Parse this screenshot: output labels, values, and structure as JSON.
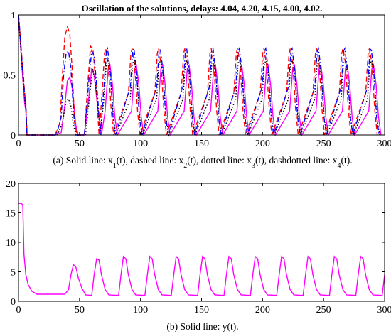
{
  "figure_title": "Oscillation of the solutions, delays: 4.04, 4.20, 4.15, 4.00, 4.02.",
  "chart_data": [
    {
      "type": "line",
      "caption": [
        {
          "t": "(a) Solid line: x"
        },
        {
          "t": "1",
          "sub": true
        },
        {
          "t": "(t), dashed line: x"
        },
        {
          "t": "2",
          "sub": true
        },
        {
          "t": "(t), dotted line: x"
        },
        {
          "t": "3",
          "sub": true
        },
        {
          "t": "(t), dashdotted line: x"
        },
        {
          "t": "4",
          "sub": true
        },
        {
          "t": "(t)."
        }
      ],
      "xlim": [
        0,
        300
      ],
      "ylim": [
        0,
        1
      ],
      "xticks": [
        0,
        50,
        100,
        150,
        200,
        250,
        300
      ],
      "yticks": [
        0,
        0.5,
        1
      ],
      "ytick_labels": [
        "0",
        "0.5",
        "1"
      ],
      "grid": false,
      "period_after_transient": 21.6,
      "series": [
        {
          "style": "solid",
          "color": "#ff00ff",
          "points": [
            [
              0,
              1.0
            ],
            [
              1,
              0.85
            ],
            [
              2,
              0.7
            ],
            [
              3,
              0.55
            ],
            [
              4,
              0.4
            ],
            [
              5,
              0.27
            ],
            [
              6,
              0.2
            ],
            [
              7,
              0.0
            ],
            [
              30,
              0.0
            ],
            [
              35,
              0.02
            ],
            [
              38,
              0.25
            ],
            [
              40,
              0.45
            ],
            [
              42,
              0.48
            ],
            [
              44,
              0.4
            ],
            [
              47,
              0.08
            ],
            [
              49,
              0.0
            ],
            [
              54,
              0.0
            ],
            [
              58,
              0.35
            ],
            [
              60,
              0.56
            ],
            [
              62,
              0.5
            ],
            [
              65,
              0.22
            ],
            [
              68,
              0.0
            ]
          ],
          "cycle": [
            [
              0,
              0.0
            ],
            [
              3,
              0.2
            ],
            [
              5.5,
              0.55
            ],
            [
              7,
              0.58
            ],
            [
              9,
              0.42
            ],
            [
              11,
              0.15
            ],
            [
              13,
              0.0
            ]
          ]
        },
        {
          "style": "dashed",
          "color": "#ff0000",
          "points": [
            [
              0,
              1.0
            ],
            [
              1,
              0.88
            ],
            [
              2,
              0.75
            ],
            [
              3,
              0.62
            ],
            [
              4,
              0.5
            ],
            [
              5,
              0.35
            ],
            [
              6,
              0.27
            ],
            [
              7,
              0.0
            ],
            [
              30,
              0.0
            ],
            [
              34,
              0.1
            ],
            [
              36,
              0.5
            ],
            [
              38,
              0.82
            ],
            [
              40,
              0.9
            ],
            [
              42,
              0.85
            ],
            [
              44,
              0.55
            ],
            [
              46,
              0.1
            ],
            [
              48,
              0.0
            ],
            [
              54,
              0.0
            ],
            [
              57,
              0.45
            ],
            [
              59,
              0.74
            ],
            [
              61,
              0.72
            ],
            [
              64,
              0.35
            ],
            [
              66,
              0.0
            ]
          ],
          "cycle": [
            [
              0,
              0.0
            ],
            [
              2.5,
              0.35
            ],
            [
              4.5,
              0.68
            ],
            [
              5.5,
              0.72
            ],
            [
              7.5,
              0.6
            ],
            [
              10,
              0.2
            ],
            [
              12,
              0.0
            ]
          ]
        },
        {
          "style": "dotted",
          "color": "#000000",
          "points": [
            [
              0,
              1.0
            ],
            [
              1,
              0.85
            ],
            [
              2,
              0.7
            ],
            [
              3,
              0.55
            ],
            [
              4,
              0.42
            ],
            [
              5,
              0.3
            ],
            [
              6,
              0.22
            ],
            [
              7,
              0.0
            ],
            [
              32,
              0.0
            ],
            [
              36,
              0.1
            ],
            [
              39,
              0.28
            ],
            [
              41,
              0.3
            ],
            [
              43,
              0.24
            ],
            [
              45,
              0.08
            ],
            [
              47,
              0.0
            ],
            [
              55,
              0.0
            ],
            [
              59,
              0.4
            ],
            [
              61,
              0.55
            ],
            [
              64,
              0.35
            ],
            [
              67,
              0.0
            ]
          ],
          "cycle": [
            [
              0,
              0.0
            ],
            [
              3,
              0.3
            ],
            [
              5,
              0.6
            ],
            [
              6.5,
              0.62
            ],
            [
              8.5,
              0.48
            ],
            [
              11,
              0.12
            ],
            [
              13,
              0.0
            ]
          ]
        },
        {
          "style": "dashdot",
          "color": "#0000ff",
          "points": [
            [
              0,
              1.0
            ],
            [
              1,
              0.88
            ],
            [
              2,
              0.74
            ],
            [
              3,
              0.6
            ],
            [
              4,
              0.47
            ],
            [
              5,
              0.33
            ],
            [
              6,
              0.25
            ],
            [
              7,
              0.0
            ],
            [
              31,
              0.0
            ],
            [
              35,
              0.15
            ],
            [
              37,
              0.5
            ],
            [
              39,
              0.68
            ],
            [
              41,
              0.7
            ],
            [
              43,
              0.55
            ],
            [
              45,
              0.2
            ],
            [
              47,
              0.0
            ],
            [
              54,
              0.0
            ],
            [
              58,
              0.5
            ],
            [
              60,
              0.7
            ],
            [
              62,
              0.66
            ],
            [
              65,
              0.3
            ],
            [
              67,
              0.0
            ]
          ],
          "cycle": [
            [
              0,
              0.0
            ],
            [
              3,
              0.4
            ],
            [
              5,
              0.7
            ],
            [
              6,
              0.72
            ],
            [
              8,
              0.55
            ],
            [
              10.5,
              0.15
            ],
            [
              12.5,
              0.0
            ]
          ]
        }
      ]
    },
    {
      "type": "line",
      "caption": [
        {
          "t": "(b) Solid line: y(t)."
        }
      ],
      "xlim": [
        0,
        300
      ],
      "ylim": [
        0,
        20
      ],
      "xticks": [
        0,
        50,
        100,
        150,
        200,
        250,
        300
      ],
      "yticks": [
        0,
        5,
        10,
        15,
        20
      ],
      "ytick_labels": [
        "0",
        "5",
        "10",
        "15",
        "20"
      ],
      "grid": false,
      "period_after_transient": 21.6,
      "series": [
        {
          "style": "solid",
          "color": "#ff00ff",
          "points": [
            [
              0,
              16.6
            ],
            [
              2,
              16.6
            ],
            [
              3.5,
              16.4
            ],
            [
              4.5,
              8.0
            ],
            [
              6,
              4.5
            ],
            [
              8,
              2.8
            ],
            [
              11,
              1.7
            ],
            [
              15,
              1.2
            ],
            [
              38,
              1.2
            ],
            [
              41,
              2.0
            ],
            [
              43,
              4.5
            ],
            [
              45,
              6.2
            ],
            [
              47,
              5.8
            ],
            [
              49,
              4.0
            ],
            [
              52,
              2.2
            ],
            [
              55,
              1.1
            ],
            [
              60,
              1.0
            ],
            [
              62,
              4.5
            ],
            [
              64,
              7.2
            ],
            [
              66,
              7.0
            ],
            [
              68,
              4.5
            ],
            [
              71,
              2.0
            ],
            [
              74,
              1.1
            ],
            [
              82,
              1.0
            ]
          ],
          "cycle": [
            [
              0,
              1.0
            ],
            [
              2,
              4.5
            ],
            [
              4,
              7.6
            ],
            [
              6,
              7.2
            ],
            [
              8,
              4.5
            ],
            [
              11,
              2.0
            ],
            [
              14,
              1.1
            ],
            [
              21.6,
              1.0
            ]
          ]
        }
      ]
    }
  ]
}
